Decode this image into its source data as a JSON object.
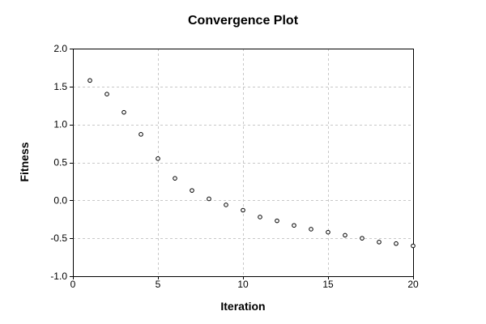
{
  "chart_data": {
    "type": "scatter",
    "title": "Convergence Plot",
    "xlabel": "Iteration",
    "ylabel": "Fitness",
    "xlim": [
      0,
      20
    ],
    "ylim": [
      -1.0,
      2.0
    ],
    "xticks": [
      "0",
      "5",
      "10",
      "15",
      "20"
    ],
    "yticks": [
      "-1.0",
      "-0.5",
      "0.0",
      "0.5",
      "1.0",
      "1.5",
      "2.0"
    ],
    "grid": true,
    "marker": "hollow-circle",
    "colors": {
      "marker": "#000000",
      "grid": "#c8c8c8",
      "frame": "#000000"
    },
    "series": [
      {
        "x": [
          1,
          2,
          3,
          4,
          5,
          6,
          7,
          8,
          9,
          10,
          11,
          12,
          13,
          14,
          15,
          16,
          17,
          18,
          19,
          20
        ],
        "y": [
          1.58,
          1.4,
          1.16,
          0.87,
          0.55,
          0.29,
          0.13,
          0.02,
          -0.06,
          -0.13,
          -0.22,
          -0.27,
          -0.33,
          -0.38,
          -0.42,
          -0.46,
          -0.5,
          -0.55,
          -0.57,
          -0.6
        ]
      }
    ]
  }
}
